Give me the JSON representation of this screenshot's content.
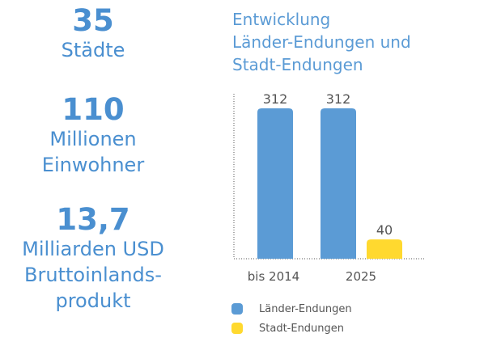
{
  "stats": [
    {
      "number": "35",
      "label_lines": [
        "Städte"
      ]
    },
    {
      "number": "110",
      "label_lines": [
        "Millionen",
        "Einwohner"
      ]
    },
    {
      "number": "13,7",
      "label_lines": [
        "Milliarden USD",
        "Bruttoinlands-",
        "produkt"
      ]
    }
  ],
  "chart_data": {
    "type": "bar",
    "title_lines": [
      "Entwicklung",
      "Länder-Endungen und",
      "Stadt-Endungen"
    ],
    "categories": [
      "bis 2014",
      "2025"
    ],
    "series": [
      {
        "name": "Länder-Endungen",
        "values": [
          312,
          312
        ],
        "color": "#5b9bd5"
      },
      {
        "name": "Stadt-Endungen",
        "values": [
          null,
          40
        ],
        "color": "#ffd92f"
      }
    ],
    "ylim": [
      0,
      312
    ],
    "data_labels": true,
    "legend_position": "bottom-left"
  },
  "colors": {
    "accent": "#4a8fd0",
    "axis": "#555555",
    "label": "#555555"
  }
}
